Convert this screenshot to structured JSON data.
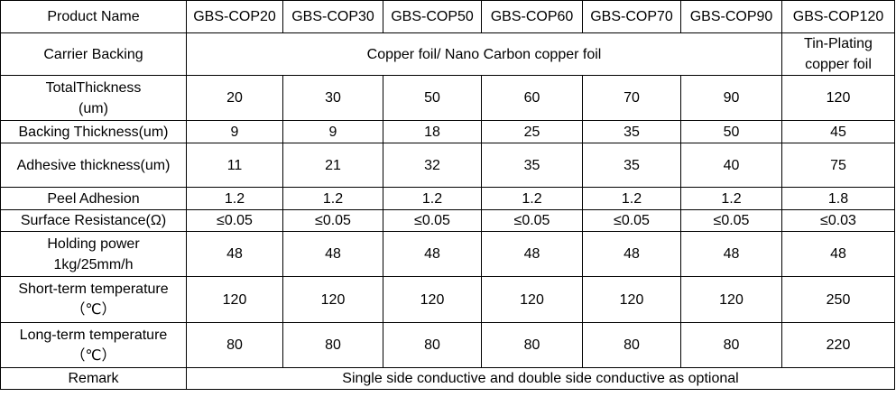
{
  "table": {
    "header": {
      "label": "Product Name",
      "products": [
        "GBS-COP20",
        "GBS-COP30",
        "GBS-COP50",
        "GBS-COP60",
        "GBS-COP70",
        "GBS-COP90",
        "GBS-COP120"
      ]
    },
    "carrier": {
      "label": "Carrier Backing",
      "common": "Copper foil/ Nano Carbon copper foil",
      "last": "Tin-Plating\ncopper foil"
    },
    "rows": [
      {
        "label": "TotalThickness\n(um)",
        "values": [
          "20",
          "30",
          "50",
          "60",
          "70",
          "90",
          "120"
        ]
      },
      {
        "label": "Backing Thickness(um)",
        "values": [
          "9",
          "9",
          "18",
          "25",
          "35",
          "50",
          "45"
        ]
      },
      {
        "label": "Adhesive thickness(um)",
        "values": [
          "11",
          "21",
          "32",
          "35",
          "35",
          "40",
          "75"
        ]
      },
      {
        "label": "Peel Adhesion",
        "values": [
          "1.2",
          "1.2",
          "1.2",
          "1.2",
          "1.2",
          "1.2",
          "1.8"
        ]
      },
      {
        "label": "Surface Resistance(Ω)",
        "values": [
          "≤0.05",
          "≤0.05",
          "≤0.05",
          "≤0.05",
          "≤0.05",
          "≤0.05",
          "≤0.03"
        ]
      },
      {
        "label": "Holding power\n1kg/25mm/h",
        "values": [
          "48",
          "48",
          "48",
          "48",
          "48",
          "48",
          "48"
        ]
      },
      {
        "label": "Short-term temperature\n（℃）",
        "values": [
          "120",
          "120",
          "120",
          "120",
          "120",
          "120",
          "250"
        ]
      },
      {
        "label": "Long-term temperature\n（℃）",
        "values": [
          "80",
          "80",
          "80",
          "80",
          "80",
          "80",
          "220"
        ]
      }
    ],
    "remark": {
      "label": "Remark",
      "text": "Single side conductive and double side conductive as optional"
    }
  }
}
